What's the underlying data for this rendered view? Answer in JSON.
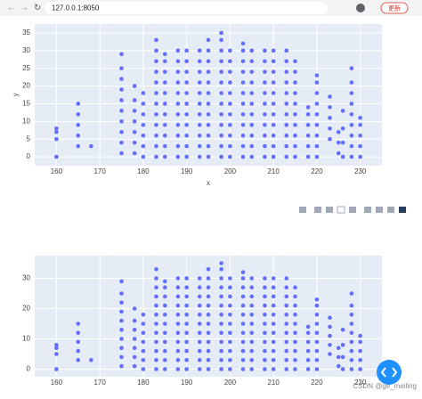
{
  "browser": {
    "url": "127.0.0.1:8050",
    "update_button": "更新"
  },
  "watermark": "CSDN @ge_meiling",
  "chart_data": [
    {
      "type": "scatter",
      "x_label": "x",
      "y_label": "y",
      "color": "#636efa",
      "xlim": [
        155,
        235
      ],
      "ylim": [
        -2.5,
        37.5
      ],
      "xticks": [
        160,
        170,
        180,
        190,
        200,
        210,
        220,
        230
      ],
      "yticks": [
        0,
        5,
        10,
        15,
        20,
        25,
        30,
        35
      ],
      "grid": true,
      "x": [
        160,
        160,
        160,
        160,
        165,
        165,
        165,
        165,
        165,
        168,
        175,
        175,
        175,
        175,
        175,
        175,
        175,
        175,
        175,
        175,
        178,
        178,
        178,
        178,
        178,
        178,
        178,
        180,
        180,
        180,
        180,
        180,
        180,
        180,
        183,
        183,
        183,
        183,
        183,
        183,
        183,
        183,
        183,
        183,
        183,
        183,
        185,
        185,
        185,
        185,
        185,
        185,
        185,
        185,
        185,
        185,
        185,
        188,
        188,
        188,
        188,
        188,
        188,
        188,
        188,
        188,
        188,
        188,
        190,
        190,
        190,
        190,
        190,
        190,
        190,
        190,
        190,
        190,
        190,
        193,
        193,
        193,
        193,
        193,
        193,
        193,
        193,
        193,
        193,
        193,
        195,
        195,
        195,
        195,
        195,
        195,
        195,
        195,
        195,
        195,
        195,
        195,
        198,
        198,
        198,
        198,
        198,
        198,
        198,
        198,
        198,
        198,
        198,
        198,
        198,
        200,
        200,
        200,
        200,
        200,
        200,
        200,
        200,
        200,
        200,
        200,
        203,
        203,
        203,
        203,
        203,
        203,
        203,
        203,
        203,
        203,
        203,
        203,
        205,
        205,
        205,
        205,
        205,
        205,
        205,
        205,
        205,
        205,
        205,
        208,
        208,
        208,
        208,
        208,
        208,
        208,
        208,
        208,
        208,
        208,
        210,
        210,
        210,
        210,
        210,
        210,
        210,
        210,
        210,
        210,
        210,
        213,
        213,
        213,
        213,
        213,
        213,
        213,
        213,
        213,
        213,
        213,
        215,
        215,
        215,
        215,
        215,
        215,
        215,
        215,
        215,
        215,
        218,
        218,
        218,
        218,
        218,
        218,
        220,
        220,
        220,
        220,
        220,
        220,
        220,
        220,
        220,
        223,
        223,
        223,
        223,
        223,
        225,
        225,
        225,
        226,
        226,
        226,
        226,
        228,
        228,
        228,
        228,
        228,
        228,
        228,
        228,
        228,
        230,
        230,
        230,
        230,
        230
      ],
      "y": [
        0,
        5,
        7,
        8,
        3,
        6,
        9,
        12,
        15,
        3,
        1,
        4,
        7,
        10,
        13,
        16,
        19,
        22,
        25,
        29,
        1,
        4,
        7,
        10,
        13,
        16,
        20,
        0,
        3,
        6,
        9,
        12,
        15,
        18,
        0,
        3,
        6,
        9,
        12,
        15,
        18,
        21,
        24,
        27,
        30,
        33,
        0,
        3,
        6,
        9,
        12,
        15,
        18,
        21,
        24,
        27,
        29,
        0,
        3,
        6,
        9,
        12,
        15,
        18,
        21,
        24,
        27,
        30,
        0,
        3,
        6,
        9,
        12,
        15,
        18,
        21,
        24,
        27,
        30,
        0,
        3,
        6,
        9,
        12,
        15,
        18,
        21,
        24,
        27,
        30,
        0,
        3,
        6,
        9,
        12,
        15,
        18,
        21,
        24,
        27,
        30,
        33,
        0,
        3,
        6,
        9,
        12,
        15,
        18,
        21,
        24,
        27,
        30,
        33,
        35,
        0,
        3,
        6,
        9,
        12,
        15,
        18,
        21,
        24,
        27,
        30,
        0,
        3,
        6,
        9,
        12,
        15,
        18,
        21,
        24,
        27,
        30,
        32,
        0,
        3,
        6,
        9,
        12,
        15,
        18,
        21,
        24,
        27,
        30,
        0,
        3,
        6,
        9,
        12,
        15,
        18,
        21,
        24,
        27,
        30,
        0,
        3,
        6,
        9,
        12,
        15,
        18,
        21,
        24,
        27,
        30,
        0,
        3,
        6,
        9,
        12,
        15,
        18,
        21,
        24,
        27,
        30,
        0,
        3,
        6,
        9,
        12,
        15,
        18,
        21,
        24,
        27,
        0,
        3,
        6,
        9,
        12,
        14,
        0,
        3,
        6,
        9,
        12,
        15,
        18,
        21,
        23,
        5,
        8,
        11,
        14,
        17,
        1,
        4,
        7,
        0,
        4,
        8,
        13,
        0,
        3,
        6,
        9,
        12,
        15,
        18,
        21,
        25,
        0,
        3,
        6,
        9,
        11
      ]
    },
    {
      "type": "scatter",
      "color": "#636efa",
      "xlim": [
        155,
        235
      ],
      "ylim": [
        -2.5,
        37.5
      ],
      "xticks": [
        160,
        170,
        180,
        190,
        200,
        210,
        220,
        230
      ],
      "yticks": [
        0,
        10,
        20,
        30
      ],
      "grid": true,
      "x": [
        160,
        160,
        160,
        160,
        165,
        165,
        165,
        165,
        165,
        168,
        175,
        175,
        175,
        175,
        175,
        175,
        175,
        175,
        175,
        175,
        178,
        178,
        178,
        178,
        178,
        178,
        178,
        180,
        180,
        180,
        180,
        180,
        180,
        180,
        183,
        183,
        183,
        183,
        183,
        183,
        183,
        183,
        183,
        183,
        183,
        183,
        185,
        185,
        185,
        185,
        185,
        185,
        185,
        185,
        185,
        185,
        185,
        188,
        188,
        188,
        188,
        188,
        188,
        188,
        188,
        188,
        188,
        188,
        190,
        190,
        190,
        190,
        190,
        190,
        190,
        190,
        190,
        190,
        190,
        193,
        193,
        193,
        193,
        193,
        193,
        193,
        193,
        193,
        193,
        193,
        195,
        195,
        195,
        195,
        195,
        195,
        195,
        195,
        195,
        195,
        195,
        195,
        198,
        198,
        198,
        198,
        198,
        198,
        198,
        198,
        198,
        198,
        198,
        198,
        198,
        200,
        200,
        200,
        200,
        200,
        200,
        200,
        200,
        200,
        200,
        200,
        203,
        203,
        203,
        203,
        203,
        203,
        203,
        203,
        203,
        203,
        203,
        203,
        205,
        205,
        205,
        205,
        205,
        205,
        205,
        205,
        205,
        205,
        205,
        208,
        208,
        208,
        208,
        208,
        208,
        208,
        208,
        208,
        208,
        208,
        210,
        210,
        210,
        210,
        210,
        210,
        210,
        210,
        210,
        210,
        210,
        213,
        213,
        213,
        213,
        213,
        213,
        213,
        213,
        213,
        213,
        213,
        215,
        215,
        215,
        215,
        215,
        215,
        215,
        215,
        215,
        215,
        218,
        218,
        218,
        218,
        218,
        218,
        220,
        220,
        220,
        220,
        220,
        220,
        220,
        220,
        220,
        223,
        223,
        223,
        223,
        223,
        225,
        225,
        225,
        226,
        226,
        226,
        226,
        228,
        228,
        228,
        228,
        228,
        228,
        228,
        228,
        228,
        230,
        230,
        230,
        230,
        230
      ],
      "y": [
        0,
        5,
        7,
        8,
        3,
        6,
        9,
        12,
        15,
        3,
        1,
        4,
        7,
        10,
        13,
        16,
        19,
        22,
        25,
        29,
        1,
        4,
        7,
        10,
        13,
        16,
        20,
        0,
        3,
        6,
        9,
        12,
        15,
        18,
        0,
        3,
        6,
        9,
        12,
        15,
        18,
        21,
        24,
        27,
        30,
        33,
        0,
        3,
        6,
        9,
        12,
        15,
        18,
        21,
        24,
        27,
        29,
        0,
        3,
        6,
        9,
        12,
        15,
        18,
        21,
        24,
        27,
        30,
        0,
        3,
        6,
        9,
        12,
        15,
        18,
        21,
        24,
        27,
        30,
        0,
        3,
        6,
        9,
        12,
        15,
        18,
        21,
        24,
        27,
        30,
        0,
        3,
        6,
        9,
        12,
        15,
        18,
        21,
        24,
        27,
        30,
        33,
        0,
        3,
        6,
        9,
        12,
        15,
        18,
        21,
        24,
        27,
        30,
        33,
        35,
        0,
        3,
        6,
        9,
        12,
        15,
        18,
        21,
        24,
        27,
        30,
        0,
        3,
        6,
        9,
        12,
        15,
        18,
        21,
        24,
        27,
        30,
        32,
        0,
        3,
        6,
        9,
        12,
        15,
        18,
        21,
        24,
        27,
        30,
        0,
        3,
        6,
        9,
        12,
        15,
        18,
        21,
        24,
        27,
        30,
        0,
        3,
        6,
        9,
        12,
        15,
        18,
        21,
        24,
        27,
        30,
        0,
        3,
        6,
        9,
        12,
        15,
        18,
        21,
        24,
        27,
        30,
        0,
        3,
        6,
        9,
        12,
        15,
        18,
        21,
        24,
        27,
        0,
        3,
        6,
        9,
        12,
        14,
        0,
        3,
        6,
        9,
        12,
        15,
        18,
        21,
        23,
        5,
        8,
        11,
        14,
        17,
        1,
        4,
        7,
        0,
        4,
        8,
        13,
        0,
        3,
        6,
        9,
        12,
        15,
        18,
        21,
        25,
        0,
        3,
        6,
        9,
        11
      ]
    }
  ]
}
